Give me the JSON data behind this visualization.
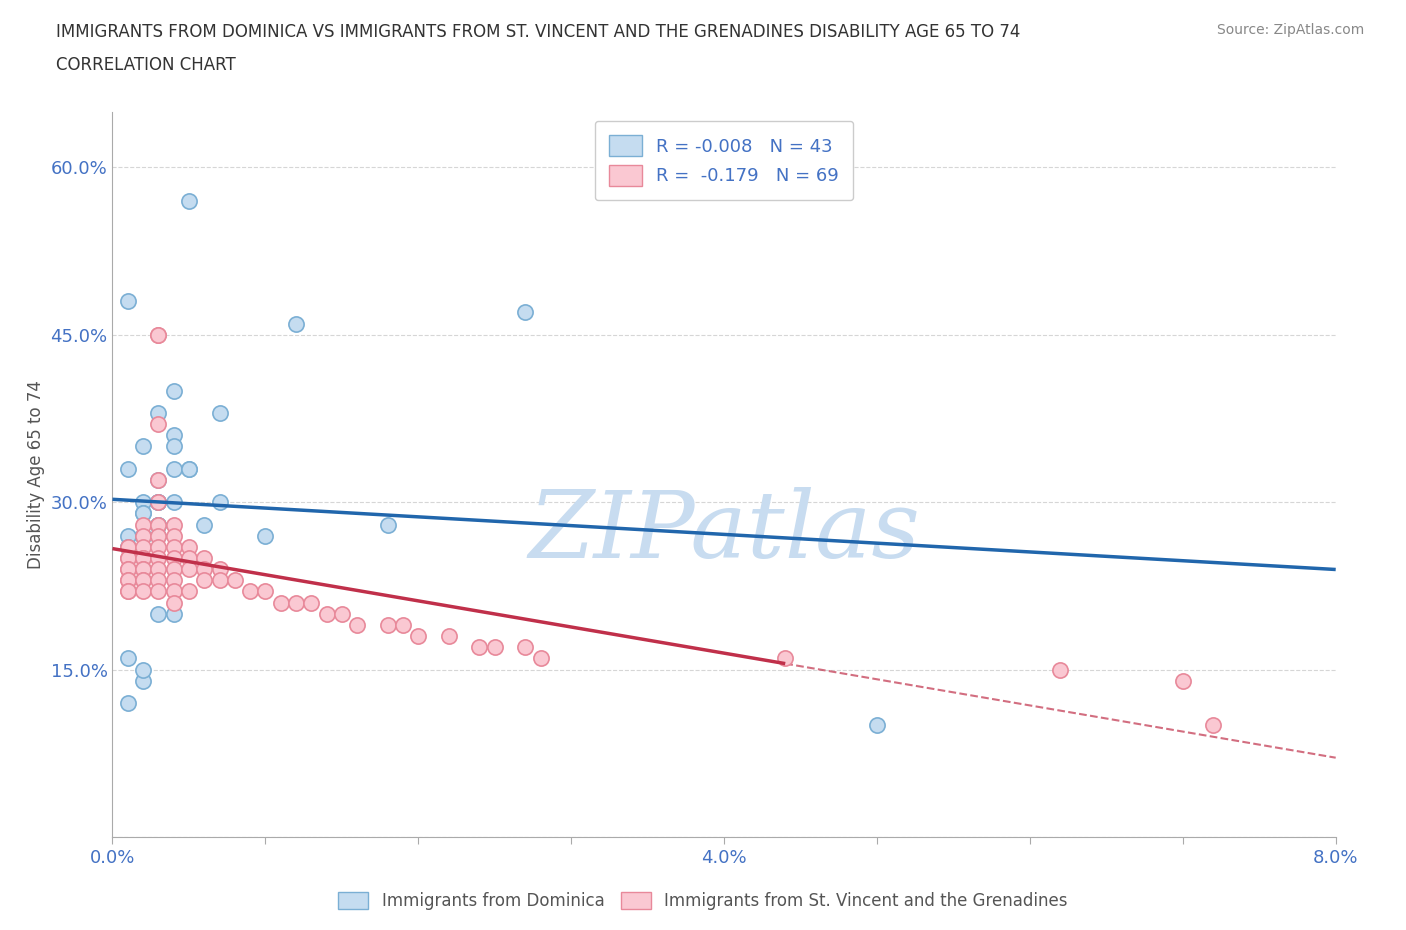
{
  "title_line1": "IMMIGRANTS FROM DOMINICA VS IMMIGRANTS FROM ST. VINCENT AND THE GRENADINES DISABILITY AGE 65 TO 74",
  "title_line2": "CORRELATION CHART",
  "source_text": "Source: ZipAtlas.com",
  "xlabel": "",
  "ylabel": "Disability Age 65 to 74",
  "xlim": [
    0.0,
    0.08
  ],
  "ylim": [
    0.0,
    0.65
  ],
  "xticks": [
    0.0,
    0.01,
    0.02,
    0.03,
    0.04,
    0.05,
    0.06,
    0.07,
    0.08
  ],
  "xticklabels": [
    "0.0%",
    "",
    "",
    "",
    "4.0%",
    "",
    "",
    "",
    "8.0%"
  ],
  "yticks": [
    0.0,
    0.15,
    0.3,
    0.45,
    0.6
  ],
  "yticklabels": [
    "",
    "15.0%",
    "30.0%",
    "45.0%",
    "60.0%"
  ],
  "dominica_R": -0.008,
  "dominica_N": 43,
  "vincent_R": -0.179,
  "vincent_N": 69,
  "color_dominica_fill": "#C5DCF0",
  "color_dominica_edge": "#7BAFD4",
  "color_vincent_fill": "#FAC8D2",
  "color_vincent_edge": "#E8899A",
  "regression_color_dominica": "#2166AC",
  "regression_color_vincent": "#C0304A",
  "dominica_x": [
    0.003,
    0.005,
    0.012,
    0.007,
    0.004,
    0.002,
    0.003,
    0.003,
    0.001,
    0.002,
    0.001,
    0.002,
    0.002,
    0.003,
    0.003,
    0.004,
    0.004,
    0.005,
    0.003,
    0.006,
    0.003,
    0.003,
    0.002,
    0.004,
    0.004,
    0.005,
    0.003,
    0.004,
    0.003,
    0.018,
    0.007,
    0.001,
    0.002,
    0.002,
    0.001,
    0.002,
    0.001,
    0.001,
    0.027,
    0.05,
    0.002,
    0.01,
    0.001
  ],
  "dominica_y": [
    0.3,
    0.57,
    0.46,
    0.38,
    0.33,
    0.35,
    0.28,
    0.28,
    0.27,
    0.3,
    0.26,
    0.29,
    0.27,
    0.32,
    0.38,
    0.3,
    0.36,
    0.33,
    0.3,
    0.28,
    0.27,
    0.3,
    0.29,
    0.4,
    0.35,
    0.33,
    0.28,
    0.2,
    0.2,
    0.28,
    0.3,
    0.26,
    0.14,
    0.27,
    0.33,
    0.15,
    0.16,
    0.48,
    0.47,
    0.1,
    0.27,
    0.27,
    0.12
  ],
  "vincent_x": [
    0.001,
    0.001,
    0.001,
    0.001,
    0.001,
    0.001,
    0.001,
    0.001,
    0.001,
    0.002,
    0.002,
    0.002,
    0.002,
    0.002,
    0.002,
    0.002,
    0.002,
    0.002,
    0.002,
    0.003,
    0.003,
    0.003,
    0.003,
    0.003,
    0.003,
    0.003,
    0.003,
    0.003,
    0.003,
    0.003,
    0.003,
    0.004,
    0.004,
    0.004,
    0.004,
    0.004,
    0.004,
    0.004,
    0.004,
    0.005,
    0.005,
    0.005,
    0.005,
    0.006,
    0.006,
    0.006,
    0.007,
    0.007,
    0.008,
    0.009,
    0.01,
    0.011,
    0.012,
    0.013,
    0.014,
    0.015,
    0.016,
    0.018,
    0.019,
    0.02,
    0.022,
    0.024,
    0.025,
    0.027,
    0.028,
    0.044,
    0.062,
    0.07,
    0.072
  ],
  "vincent_y": [
    0.26,
    0.25,
    0.25,
    0.24,
    0.24,
    0.23,
    0.23,
    0.22,
    0.22,
    0.28,
    0.27,
    0.26,
    0.25,
    0.25,
    0.24,
    0.24,
    0.23,
    0.23,
    0.22,
    0.45,
    0.45,
    0.37,
    0.32,
    0.3,
    0.28,
    0.27,
    0.26,
    0.25,
    0.24,
    0.23,
    0.22,
    0.28,
    0.27,
    0.26,
    0.25,
    0.24,
    0.23,
    0.22,
    0.21,
    0.26,
    0.25,
    0.24,
    0.22,
    0.25,
    0.24,
    0.23,
    0.24,
    0.23,
    0.23,
    0.22,
    0.22,
    0.21,
    0.21,
    0.21,
    0.2,
    0.2,
    0.19,
    0.19,
    0.19,
    0.18,
    0.18,
    0.17,
    0.17,
    0.17,
    0.16,
    0.16,
    0.15,
    0.14,
    0.1
  ],
  "watermark_text": "ZIPatlas",
  "watermark_color": "#C8DCF0",
  "background_color": "#FFFFFF",
  "grid_color": "#CCCCCC",
  "legend_box_color": "#FFFFFF",
  "legend_edge_color": "#CCCCCC"
}
